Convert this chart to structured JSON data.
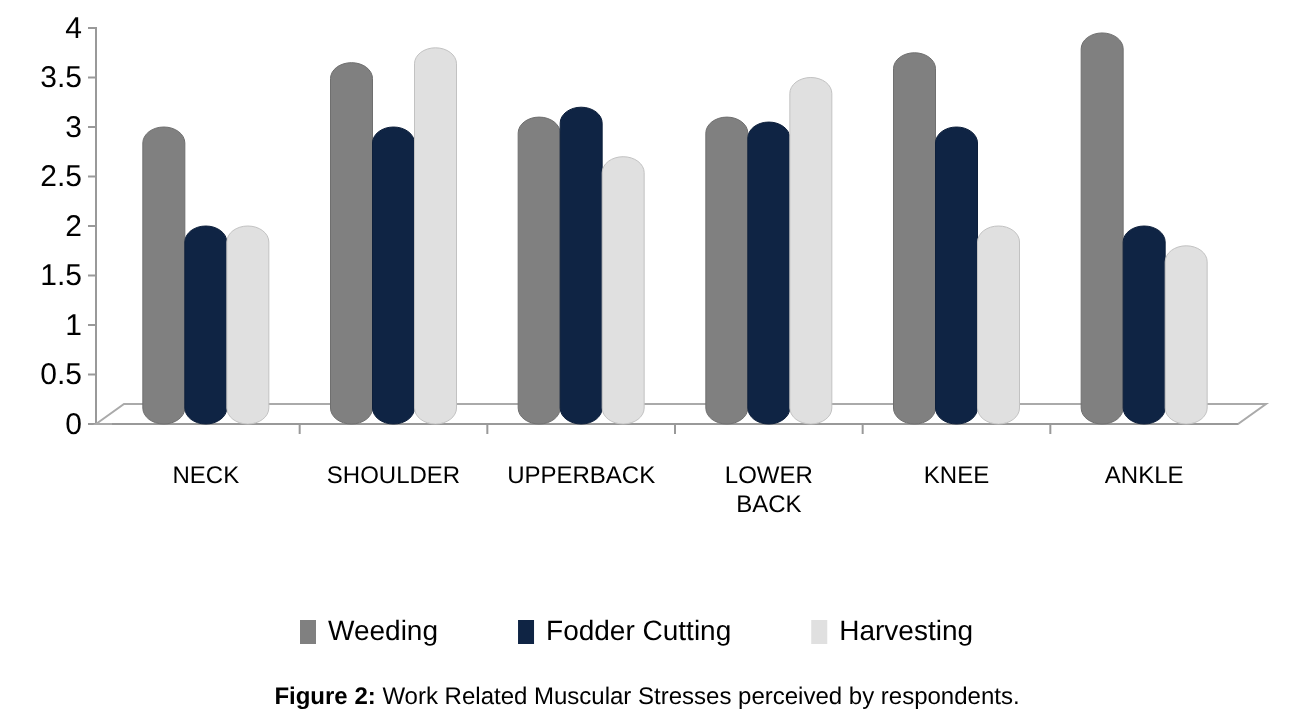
{
  "chart_data": {
    "type": "bar",
    "categories": [
      "NECK",
      "SHOULDER",
      "UPPERBACK",
      "LOWER BACK",
      "KNEE",
      "ANKLE"
    ],
    "series": [
      {
        "name": "Weeding",
        "color": "#808080",
        "values": [
          3,
          3.65,
          3.1,
          3.1,
          3.75,
          3.95
        ]
      },
      {
        "name": "Fodder Cutting",
        "color": "#0f2444",
        "values": [
          2,
          3,
          3.2,
          3.05,
          3,
          2
        ]
      },
      {
        "name": "Harvesting",
        "color": "#e0e0e0",
        "values": [
          2,
          3.8,
          2.7,
          3.5,
          2,
          1.8
        ]
      }
    ],
    "ylim": [
      0,
      4
    ],
    "yticks": [
      0,
      0.5,
      1,
      1.5,
      2,
      2.5,
      3,
      3.5,
      4
    ],
    "grid": false,
    "legend": "bottom",
    "annotations": [
      "Figure 2: Work Related Muscular Stresses perceived by respondents."
    ]
  }
}
